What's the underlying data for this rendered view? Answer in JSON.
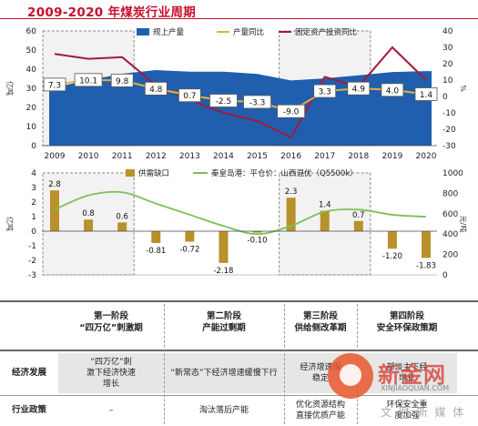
{
  "page_title": "2009-2020 年煤炭行业周期",
  "chart_data": [
    {
      "type": "area",
      "x": [
        "2009",
        "2010",
        "2011",
        "2012",
        "2013",
        "2014",
        "2015",
        "2016",
        "2017",
        "2018",
        "2019",
        "2020"
      ],
      "series": [
        {
          "name": "规上产量",
          "kind": "area",
          "axis": "left",
          "color": "#1f5fae",
          "values": [
            30.5,
            34.3,
            37.6,
            39.5,
            38.7,
            38.7,
            37.5,
            34.1,
            35.2,
            36.8,
            38.5,
            39.0
          ]
        },
        {
          "name": "产量同比",
          "kind": "line",
          "axis": "right",
          "color": "#e3b23c",
          "values": [
            7.3,
            10.1,
            9.8,
            4.8,
            0.7,
            -2.5,
            -3.3,
            -9.0,
            3.3,
            4.9,
            4.0,
            1.4
          ]
        },
        {
          "name": "固定资产投资同比",
          "kind": "line",
          "axis": "right",
          "color": "#a31a3b",
          "values": [
            26,
            23,
            24,
            7,
            -2,
            -10,
            -15,
            -25,
            12,
            6,
            30,
            10
          ]
        }
      ],
      "data_labels": [
        "7.3",
        "10.1",
        "9.8",
        "4.8",
        "0.7",
        "-2.5",
        "-3.3",
        "-9.0",
        "3.3",
        "4.9",
        "4.0",
        "1.4"
      ],
      "ylabel_left": "亿吨",
      "ylabel_right": "%",
      "ylim_left": [
        0,
        60
      ],
      "ylim_right": [
        -30,
        40
      ],
      "yticks_left": [
        "0",
        "10",
        "20",
        "30",
        "40",
        "50",
        "60"
      ],
      "yticks_right": [
        "-30",
        "-20",
        "-10",
        "0",
        "10",
        "20",
        "30",
        "40"
      ],
      "legend_position": "top"
    },
    {
      "type": "bar",
      "x": [
        "2009",
        "2010",
        "2011",
        "2012",
        "2013",
        "2014",
        "2015",
        "2016",
        "2017",
        "2018",
        "2019",
        "2020"
      ],
      "series": [
        {
          "name": "供需缺口",
          "kind": "bar",
          "axis": "left",
          "color": "#b8912a",
          "values": [
            2.8,
            0.8,
            0.6,
            -0.81,
            -0.72,
            -2.18,
            -0.1,
            2.3,
            1.4,
            0.7,
            -1.2,
            -1.83
          ]
        },
        {
          "name": "秦皇岛港：平仓价：山西混优（Q5500k）",
          "kind": "line",
          "axis": "right",
          "color": "#7dbf5a",
          "values": [
            640,
            780,
            810,
            700,
            590,
            480,
            400,
            480,
            620,
            640,
            590,
            570
          ]
        }
      ],
      "data_labels": [
        "2.8",
        "0.8",
        "0.6",
        "-0.81",
        "-0.72",
        "-2.18",
        "-0.10",
        "2.3",
        "1.4",
        "0.7",
        "-1.20",
        "-1.83"
      ],
      "ylabel_left": "亿吨",
      "ylabel_right": "元/吨",
      "ylim_left": [
        -3,
        4
      ],
      "ylim_right": [
        0,
        1000
      ],
      "yticks_left": [
        "-3",
        "-2",
        "-1",
        "0",
        "1",
        "2",
        "3",
        "4"
      ],
      "yticks_right": [
        "0",
        "200",
        "400",
        "600",
        "800",
        "1000"
      ],
      "legend_position": "top"
    }
  ],
  "highlight_periods": [
    [
      "2009",
      "2011"
    ],
    [
      "2016",
      "2018"
    ]
  ],
  "stages": [
    {
      "title": "第一阶段\n“四万亿”刺激期",
      "economy": "“四万亿”刺\n激下经济快速\n增长",
      "policy": "–"
    },
    {
      "title": "第二阶段\n产能过剩期",
      "economy": "“新常态”下经济增速缓慢下行",
      "policy": "淘汰落后产能"
    },
    {
      "title": "第三阶段\n供给侧改革期",
      "economy": "经济增速保\n稳定",
      "policy": "优化资源结构\n直接优质产能"
    },
    {
      "title": "第四阶段\n安全环保政策期",
      "economy": "部淡主下经\n增长",
      "policy": "环保安全重\n度加强"
    }
  ],
  "row_labels": {
    "economy": "经济发展",
    "policy": "行业政策"
  },
  "watermark": {
    "text": "新金网",
    "sub": "XINJIAOQUAN.COM",
    "cn": "文 财 新 媒 体"
  }
}
